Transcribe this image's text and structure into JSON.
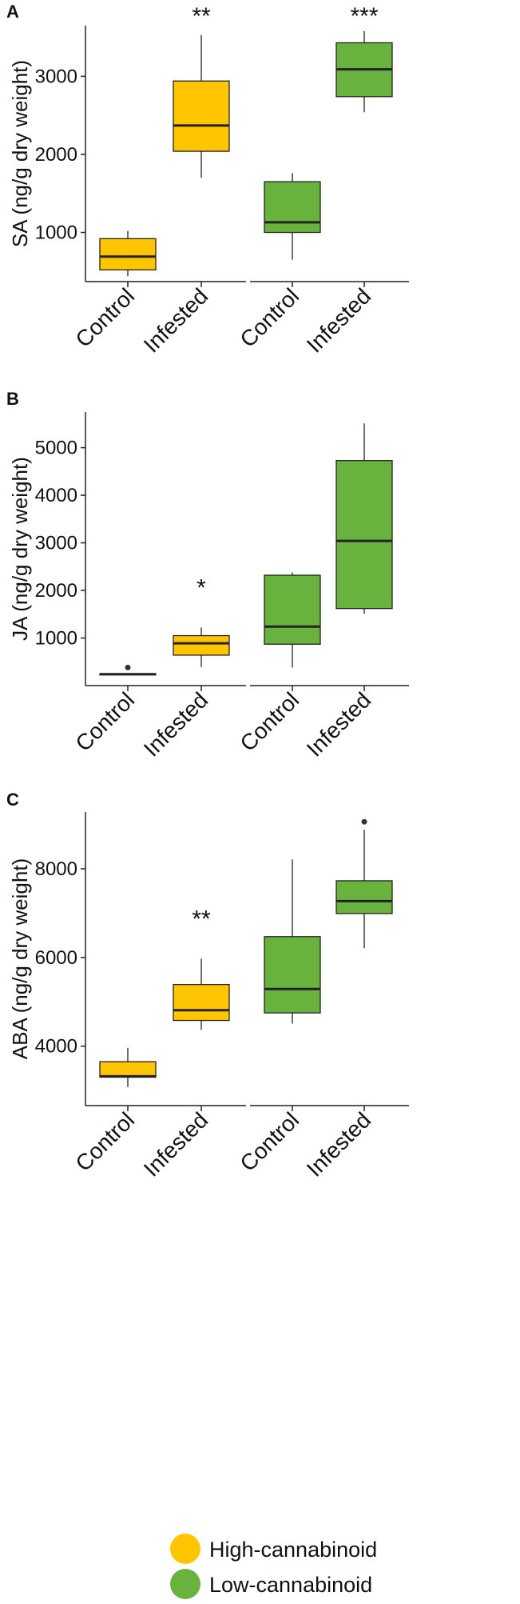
{
  "figure": {
    "legend": [
      {
        "label": "High-cannabinoid",
        "color": "#FFC600"
      },
      {
        "label": "Low-cannabinoid",
        "color": "#6AB23E"
      }
    ]
  },
  "chart_data": [
    {
      "type": "boxplot",
      "panel_label": "A",
      "ylabel": "SA (ng/g dry weight)",
      "ylim": [
        370,
        3650
      ],
      "yticks": [
        1000,
        2000,
        3000
      ],
      "groups": [
        "High-cannabinoid",
        "Low-cannabinoid"
      ],
      "categories": [
        "Control",
        "Infested"
      ],
      "boxes": [
        {
          "group": "High-cannabinoid",
          "category": "Control",
          "whisker_low": 440,
          "q1": 520,
          "median": 690,
          "q3": 920,
          "whisker_high": 1020,
          "outliers": [],
          "significance": ""
        },
        {
          "group": "High-cannabinoid",
          "category": "Infested",
          "whisker_low": 1700,
          "q1": 2040,
          "median": 2370,
          "q3": 2940,
          "whisker_high": 3530,
          "outliers": [],
          "significance": "**"
        },
        {
          "group": "Low-cannabinoid",
          "category": "Control",
          "whisker_low": 650,
          "q1": 1000,
          "median": 1130,
          "q3": 1650,
          "whisker_high": 1760,
          "outliers": [],
          "significance": ""
        },
        {
          "group": "Low-cannabinoid",
          "category": "Infested",
          "whisker_low": 2540,
          "q1": 2740,
          "median": 3090,
          "q3": 3430,
          "whisker_high": 3580,
          "outliers": [],
          "significance": "***"
        }
      ]
    },
    {
      "type": "boxplot",
      "panel_label": "B",
      "ylabel": "JA (ng/g dry weight)",
      "ylim": [
        0,
        5750
      ],
      "yticks": [
        1000,
        2000,
        3000,
        4000,
        5000
      ],
      "groups": [
        "High-cannabinoid",
        "Low-cannabinoid"
      ],
      "categories": [
        "Control",
        "Infested"
      ],
      "boxes": [
        {
          "group": "High-cannabinoid",
          "category": "Control",
          "whisker_low": 240,
          "q1": 240,
          "median": 240,
          "q3": 250,
          "whisker_high": 250,
          "outliers": [
            380
          ],
          "significance": ""
        },
        {
          "group": "High-cannabinoid",
          "category": "Infested",
          "whisker_low": 390,
          "q1": 640,
          "median": 890,
          "q3": 1050,
          "whisker_high": 1220,
          "outliers": [],
          "significance": "*"
        },
        {
          "group": "Low-cannabinoid",
          "category": "Control",
          "whisker_low": 380,
          "q1": 870,
          "median": 1240,
          "q3": 2320,
          "whisker_high": 2380,
          "outliers": [],
          "significance": ""
        },
        {
          "group": "Low-cannabinoid",
          "category": "Infested",
          "whisker_low": 1510,
          "q1": 1620,
          "median": 3040,
          "q3": 4730,
          "whisker_high": 5510,
          "outliers": [],
          "significance": ""
        }
      ]
    },
    {
      "type": "boxplot",
      "panel_label": "C",
      "ylabel": "ABA (ng/g dry weight)",
      "ylim": [
        2660,
        9280
      ],
      "yticks": [
        4000,
        6000,
        8000
      ],
      "groups": [
        "High-cannabinoid",
        "Low-cannabinoid"
      ],
      "categories": [
        "Control",
        "Infested"
      ],
      "boxes": [
        {
          "group": "High-cannabinoid",
          "category": "Control",
          "whisker_low": 3080,
          "q1": 3300,
          "median": 3320,
          "q3": 3650,
          "whisker_high": 3960,
          "outliers": [],
          "significance": ""
        },
        {
          "group": "High-cannabinoid",
          "category": "Infested",
          "whisker_low": 4370,
          "q1": 4580,
          "median": 4810,
          "q3": 5390,
          "whisker_high": 5970,
          "outliers": [],
          "significance": "**"
        },
        {
          "group": "Low-cannabinoid",
          "category": "Control",
          "whisker_low": 4510,
          "q1": 4750,
          "median": 5290,
          "q3": 6470,
          "whisker_high": 8210,
          "outliers": [],
          "significance": ""
        },
        {
          "group": "Low-cannabinoid",
          "category": "Infested",
          "whisker_low": 6210,
          "q1": 6990,
          "median": 7270,
          "q3": 7730,
          "whisker_high": 8880,
          "outliers": [
            9060
          ],
          "significance": ""
        }
      ]
    }
  ]
}
